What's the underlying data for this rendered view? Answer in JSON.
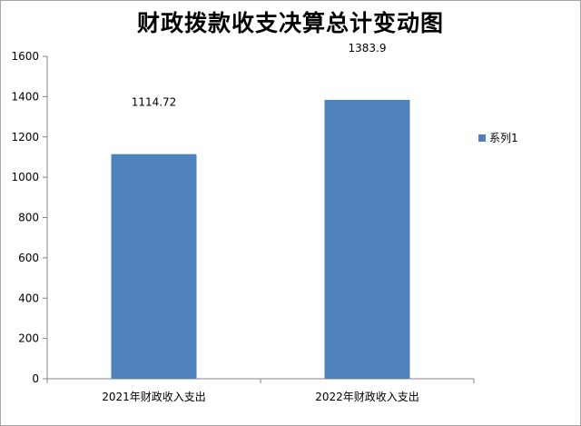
{
  "chart_data": {
    "type": "bar",
    "title": "财政拨款收支决算总计变动图",
    "categories": [
      "2021年财政收入支出",
      "2022年财政收入支出"
    ],
    "series": [
      {
        "name": "系列1",
        "values": [
          1114.72,
          1383.9
        ],
        "data_labels": [
          "1114.72",
          "1383.9"
        ]
      }
    ],
    "ylim": [
      0,
      1600
    ],
    "yticks": [
      0,
      200,
      400,
      600,
      800,
      1000,
      1200,
      1400,
      1600
    ],
    "grid": false,
    "legend": "right"
  },
  "colors": {
    "bar": "#4f81bd",
    "axis": "#868686",
    "text": "#000000"
  }
}
